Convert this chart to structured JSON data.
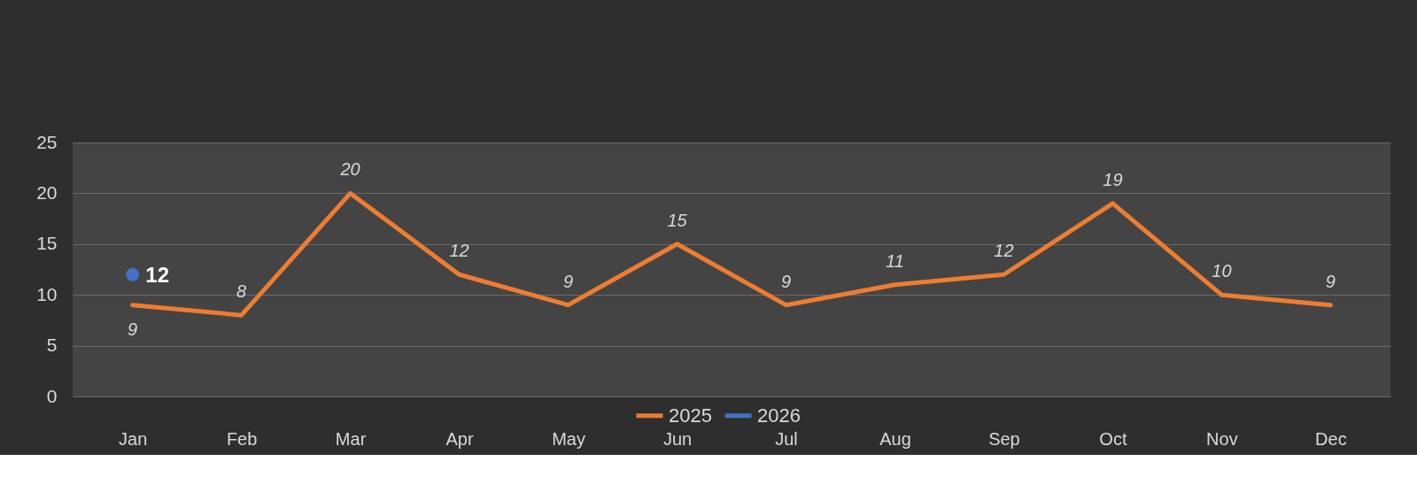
{
  "chart_data": {
    "type": "line",
    "categories": [
      "Jan",
      "Feb",
      "Mar",
      "Apr",
      "May",
      "Jun",
      "Jul",
      "Aug",
      "Sep",
      "Oct",
      "Nov",
      "Dec"
    ],
    "series": [
      {
        "name": "2025",
        "color": "#ed7d31",
        "values": [
          9,
          8,
          20,
          12,
          9,
          15,
          9,
          11,
          12,
          19,
          10,
          9
        ]
      },
      {
        "name": "2026",
        "color": "#4472c4",
        "marker": "circle",
        "values": [
          12,
          null,
          null,
          null,
          null,
          null,
          null,
          null,
          null,
          null,
          null,
          null
        ]
      }
    ],
    "ylim": [
      0,
      25
    ],
    "yticks": [
      0,
      5,
      10,
      15,
      20,
      25
    ],
    "grid": "y",
    "legend": "bottom",
    "data_labels": true,
    "marker": "none"
  }
}
